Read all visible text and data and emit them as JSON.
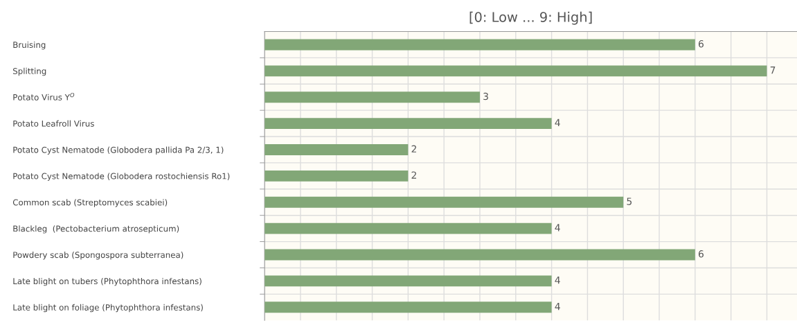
{
  "chart_data": {
    "type": "bar",
    "orientation": "horizontal",
    "title": "[0: Low ... 9: High]",
    "categories": [
      "Bruising",
      "Splitting",
      "Potato Virus Y$^{O}$",
      "Potato Leafroll Virus",
      "Potato Cyst Nematode (Globodera pallida Pa 2/3, 1)",
      "Potato Cyst Nematode (Globodera rostochiensis Ro1)",
      "Common scab (Streptomyces scabiei)",
      "Blackleg  (Pectobacterium atrosepticum)",
      "Powdery scab (Spongospora subterranea)",
      "Late blight on tubers (Phytophthora infestans)",
      "Late blight on foliage (Phytophthora infestans)"
    ],
    "values": [
      6,
      7,
      3,
      4,
      2,
      2,
      5,
      4,
      6,
      4,
      4
    ],
    "color": "#82a777",
    "data_labels": true,
    "grid": true,
    "tick_labels": "y",
    "legend": false
  }
}
